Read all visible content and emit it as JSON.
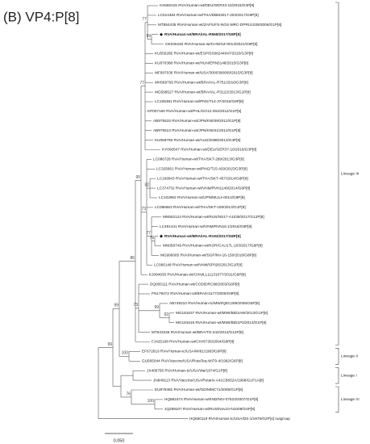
{
  "title": "(B) VP4:P[8]",
  "leaves": [
    {
      "label": "KX660415 RVA/Human-wt/DEU/GER33-15/2015/G3P[8]"
    },
    {
      "label": "LC514484 RVA/Human-wt/THA/DBM2017-203/2017/G9P[8]"
    },
    {
      "label": "MT854435 RVA/Human-wt/ZAF/UFS-NGS-MRC-DPRU1039/2006/G1P[8]"
    },
    {
      "label": "RVA/Human-wt/BRA/IAL-R568/2017/G8P[8]",
      "bold": true
    },
    {
      "label": "OK036192 RVA/Human-wt/CHN/GZ-0013/2021/G8P[8]"
    },
    {
      "label": "KU550285 RVA/Human-wt/ESP/SS98244047/2015/G3P[8]"
    },
    {
      "label": "KU870388 RVA/Human-wt/HUN/ERN5148/2015/G3P[8]"
    },
    {
      "label": "MF997036 RVA/Human-wt/USA/3000390609/2015/G3P[8]"
    },
    {
      "label": "MH569765 RVA/Human-wt/BRA/IAL-R751/2016/G3P[8]"
    },
    {
      "label": "MG599527 RVA/Human-wt/BRA/IAL-R3122/2013/G1P[8]"
    },
    {
      "label": "LC105381 RVA/Human-wt/PNG/T14-37/2016/G9P[8]"
    },
    {
      "label": "KP007160 RVA/Human-wt/PHL/GO12-004/2012/G1P[8]"
    },
    {
      "label": "AB975515 RVA/Human-wt/JPN/KN039/2012/G1P[8]"
    },
    {
      "label": "AB975513 RVA/Human-wt/JPN/KN041/2012/G1P[8]"
    },
    {
      "label": "KU059769 RVA/Human-wt/AUS/D388/2013/G3P[8]"
    },
    {
      "label": "KY000547 RVA/Human-wt/DEU/GER37-16/2016/G3P[8]"
    },
    {
      "label": "LC086728 RVA/Human-wt/THA/SKT-289/2013/G3P[8]"
    },
    {
      "label": "LC325661 RVA/Human-wt/PNG/T15-429/2015/G3P[8]"
    },
    {
      "label": "LC169943 RVA/Human-wt/THA/SKT-457/2014/G8P[8]"
    },
    {
      "label": "LC374732 RVA/Human-wt/VNM/RVN1149/2014/G8P[8]"
    },
    {
      "label": "LC102962 RVA/Human-wt/JPN/MU14-0014/G8P[8]"
    },
    {
      "label": "LC086653 RVA/Human-wt/THA/SKT-109/2013/G1P[8]"
    },
    {
      "label": "MN552124 RVA/Human-wt/RUS/NS17-A1039/2017/G12P[8]"
    },
    {
      "label": "LC491441 RVA/Human-wt/VNM/RVN16.1/2016/G8P[8]"
    },
    {
      "label": "RVA/Human-wt/BRA/IAL-R193/2017/G8P[8]",
      "bold": true
    },
    {
      "label": "MN058749 RVA/Human-wt/KOR/CAU17L-103/2017/G8P[8]"
    },
    {
      "label": "MG996085 RVA/Human-wt/SGP/NV-16-150/2016/G8P[8]"
    },
    {
      "label": "LC066148 RVA/Human-wt/VNM/SP026/2013/G1P[8]"
    },
    {
      "label": "KJ094935 RVA/Human-wt/CHN/LL11131077/2011/G9P[8]"
    },
    {
      "label": "DQ005111 RVA/Human-wt/COD/DRC88/2003/G8P[8]"
    },
    {
      "label": "FN179472 RVA/Human-wt/BRA/H1177/2005/G9P[8]"
    },
    {
      "label": "AB749210 RVA/Human-tc/MWI/QEC289/2006/G8P[8]"
    },
    {
      "label": "MG181637 RVA/Human-wt/MWI/BID2AW/2013/G1P[8]"
    },
    {
      "label": "MG181615 RVA/Human-wt/MWI/BID1P2/2013/G1P[8]"
    },
    {
      "label": "MT633445 RVA/Human-wt/BRA/TO-242/2014/G12P[8]"
    },
    {
      "label": "FJ425168 RVA/Human-wt/CIV/6736/2004/G8P[8]"
    },
    {
      "label": "EF672619 RVA/Human-tc/USA/WI61/1983/G9P[8]"
    },
    {
      "label": "GU565044 RVA/Vaccine/USA/RotaTeq-WI79-4/1992/G6P[8]"
    },
    {
      "label": "JX406750 RVA/Human-tc/USA/Wa/1974/G1P[8]"
    },
    {
      "label": "JN849113 RVA/Vaccine/USA/Rotarix-A41CB052A/1988/G1P1A[8]"
    },
    {
      "label": "EU979382 RVA/Human-wt/GD/MMC71/2005/G1P[8]"
    },
    {
      "label": "HQ881574 RVA/Human-wt/IND/NIV-07523/2007/G1P[8]"
    },
    {
      "label": "JQ289107 RVA/Human-wt/RUS/Nov10-N1008/G4P[8]"
    },
    {
      "label": "HQ650119 RVA/Human-tc/USA/DS-1/1976/G2P[4] outgroup"
    }
  ],
  "bootstrap": [
    77,
    99,
    77,
    95,
    82,
    73,
    77,
    79,
    73,
    99,
    92,
    86,
    100,
    99,
    76,
    100,
    99
  ],
  "lineages": [
    "Lineage III",
    "Lineage II",
    "Lineage I",
    "Lineage IV"
  ],
  "scale_bar": "0.050"
}
